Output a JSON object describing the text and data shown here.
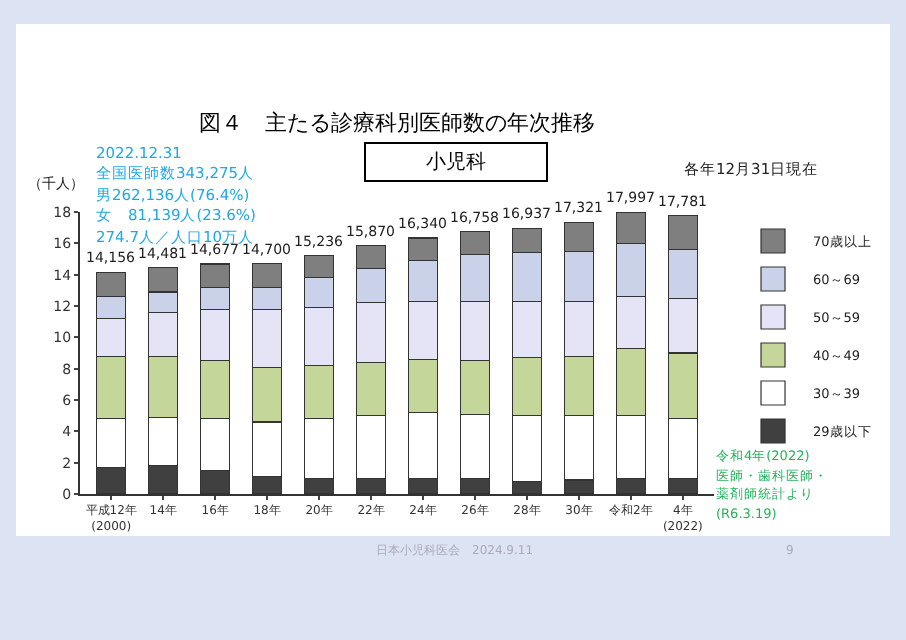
{
  "chart_data": {
    "type": "bar",
    "stacked": true,
    "title": "図４　主たる診療科別医師数の年次推移",
    "subtitle": "小児科",
    "ylabel": "（千人）",
    "categories": [
      "平成12年\n(2000)",
      "14年",
      "16年",
      "18年",
      "20年",
      "22年",
      "24年",
      "26年",
      "28年",
      "30年",
      "令和2年",
      "4年\n(2022)"
    ],
    "series": [
      {
        "name": "29歳以下",
        "color": "#404040",
        "values": [
          1.7,
          1.8,
          1.5,
          1.1,
          1.0,
          1.0,
          1.0,
          1.0,
          0.8,
          0.9,
          1.0,
          1.0
        ]
      },
      {
        "name": "30～39",
        "color": "#ffffff",
        "values": [
          3.1,
          3.1,
          3.3,
          3.5,
          3.8,
          4.0,
          4.2,
          4.1,
          4.2,
          4.1,
          4.0,
          3.8
        ]
      },
      {
        "name": "40～49",
        "color": "#c5d69b",
        "values": [
          4.0,
          3.9,
          3.7,
          3.5,
          3.4,
          3.4,
          3.4,
          3.4,
          3.7,
          3.8,
          4.3,
          4.2
        ]
      },
      {
        "name": "50～59",
        "color": "#e4e4f6",
        "values": [
          2.4,
          2.8,
          3.3,
          3.7,
          3.7,
          3.8,
          3.7,
          3.8,
          3.6,
          3.5,
          3.3,
          3.5
        ]
      },
      {
        "name": "60～69",
        "color": "#c9d2e8",
        "values": [
          1.4,
          1.3,
          1.4,
          1.4,
          1.9,
          2.2,
          2.6,
          3.0,
          3.1,
          3.2,
          3.4,
          3.1
        ]
      },
      {
        "name": "70歳以上",
        "color": "#7f7f7f",
        "values": [
          1.556,
          1.581,
          1.477,
          1.5,
          1.436,
          1.47,
          1.44,
          1.458,
          1.537,
          1.821,
          1.997,
          2.181
        ]
      }
    ],
    "totals": [
      "14,156",
      "14,481",
      "14,677",
      "14,700",
      "15,236",
      "15,870",
      "16,340",
      "16,758",
      "16,937",
      "17,321",
      "17,997",
      "17,781"
    ],
    "ylim": [
      0,
      18
    ],
    "yticks": [
      0,
      2,
      4,
      6,
      8,
      10,
      12,
      14,
      16,
      18
    ],
    "grid": false,
    "legend": "right",
    "annotations": [
      "2022.12.31",
      "全国医師数343,275人",
      "男262,136人(76.4%)",
      "女　81,139人(23.6%)",
      "274.7人／人口10万人",
      "各年12月31日現在",
      "令和4年(2022)",
      "医師・歯科医師・",
      "薬剤師統計より",
      "(R6.3.19)",
      "日本小児科医会　2024.9.11",
      "9"
    ]
  }
}
